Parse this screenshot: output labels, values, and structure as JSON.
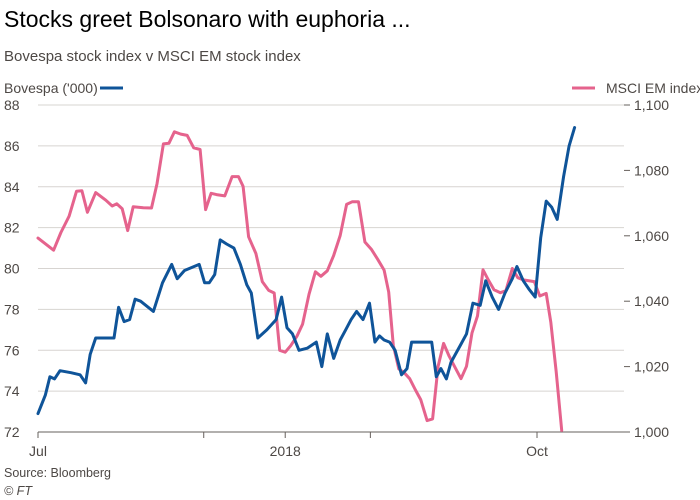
{
  "title": "Stocks greet Bolsonaro with euphoria ...",
  "subtitle": "Bovespa stock index v MSCI EM stock index",
  "source": "Source: Bloomberg",
  "credit": "© FT",
  "colors": {
    "bovespa": "#0f5499",
    "msci": "#e5638d",
    "grid": "#d7d4d1",
    "text": "#4d4845"
  },
  "chart_data": {
    "type": "line",
    "xlabel": "",
    "x_ticks": [
      "Jul",
      "",
      "2018",
      "",
      "Oct"
    ],
    "y_left": {
      "label": "Bovespa ('000)",
      "ylim": [
        72,
        88
      ],
      "ticks": [
        "72",
        "74",
        "76",
        "78",
        "80",
        "82",
        "84",
        "86",
        "88"
      ]
    },
    "y_right": {
      "label": "MSCI EM index",
      "ylim": [
        1000,
        1100
      ],
      "ticks": [
        "1,000",
        "1,020",
        "1,040",
        "1,060",
        "1,080",
        "1,100"
      ]
    },
    "series": [
      {
        "name": "Bovespa ('000)",
        "axis": "left",
        "points": [
          [
            0.0,
            72.9
          ],
          [
            0.8,
            73.8
          ],
          [
            1.3,
            74.7
          ],
          [
            1.8,
            74.6
          ],
          [
            2.4,
            75.0
          ],
          [
            3.6,
            74.9
          ],
          [
            4.6,
            74.8
          ],
          [
            5.2,
            74.4
          ],
          [
            5.7,
            75.8
          ],
          [
            6.3,
            76.6
          ],
          [
            7.6,
            76.6
          ],
          [
            8.3,
            76.6
          ],
          [
            8.8,
            78.1
          ],
          [
            9.4,
            77.4
          ],
          [
            10.0,
            77.5
          ],
          [
            10.6,
            78.5
          ],
          [
            11.2,
            78.4
          ],
          [
            12.6,
            77.9
          ],
          [
            13.6,
            79.3
          ],
          [
            14.6,
            80.2
          ],
          [
            15.2,
            79.5
          ],
          [
            16.0,
            79.9
          ],
          [
            17.6,
            80.2
          ],
          [
            18.2,
            79.3
          ],
          [
            18.7,
            79.3
          ],
          [
            19.3,
            79.7
          ],
          [
            19.9,
            81.4
          ],
          [
            20.6,
            81.2
          ],
          [
            21.4,
            81.0
          ],
          [
            22.1,
            80.2
          ],
          [
            22.8,
            79.2
          ],
          [
            23.3,
            78.8
          ],
          [
            24.0,
            76.6
          ],
          [
            25.0,
            77.0
          ],
          [
            26.0,
            77.5
          ],
          [
            26.6,
            78.6
          ],
          [
            27.2,
            77.1
          ],
          [
            27.8,
            76.8
          ],
          [
            28.5,
            76.0
          ],
          [
            29.4,
            76.1
          ],
          [
            30.4,
            76.4
          ],
          [
            31.0,
            75.2
          ],
          [
            31.6,
            76.8
          ],
          [
            32.3,
            75.6
          ],
          [
            33.0,
            76.5
          ],
          [
            33.6,
            77.0
          ],
          [
            34.2,
            77.5
          ],
          [
            34.8,
            77.9
          ],
          [
            35.5,
            77.5
          ],
          [
            36.2,
            78.3
          ],
          [
            36.8,
            76.4
          ],
          [
            37.3,
            76.7
          ],
          [
            37.8,
            76.5
          ],
          [
            38.4,
            76.4
          ],
          [
            39.0,
            76.0
          ],
          [
            39.7,
            74.8
          ],
          [
            40.3,
            75.1
          ],
          [
            40.8,
            76.4
          ],
          [
            42.0,
            76.4
          ],
          [
            43.0,
            76.4
          ],
          [
            43.5,
            74.7
          ],
          [
            44.0,
            75.1
          ],
          [
            44.6,
            74.6
          ],
          [
            45.1,
            75.4
          ],
          [
            46.2,
            76.3
          ],
          [
            46.8,
            76.8
          ],
          [
            47.5,
            78.3
          ],
          [
            48.3,
            78.2
          ],
          [
            48.9,
            79.4
          ],
          [
            49.6,
            78.6
          ],
          [
            50.3,
            78.0
          ],
          [
            51.0,
            78.8
          ],
          [
            51.8,
            79.5
          ],
          [
            52.3,
            80.1
          ],
          [
            53.0,
            79.4
          ],
          [
            53.6,
            79.0
          ],
          [
            54.3,
            78.6
          ],
          [
            54.9,
            81.5
          ],
          [
            55.5,
            83.3
          ],
          [
            56.1,
            83.0
          ],
          [
            56.7,
            82.4
          ],
          [
            57.4,
            84.5
          ],
          [
            58.0,
            86.0
          ],
          [
            58.6,
            86.9
          ]
        ]
      },
      {
        "name": "MSCI EM index",
        "axis": "right",
        "points": [
          [
            0.0,
            1059.3
          ],
          [
            1.7,
            1055.6
          ],
          [
            2.5,
            1061.0
          ],
          [
            3.4,
            1066.0
          ],
          [
            4.2,
            1073.6
          ],
          [
            4.8,
            1073.8
          ],
          [
            5.4,
            1067.2
          ],
          [
            6.3,
            1073.2
          ],
          [
            7.4,
            1070.9
          ],
          [
            8.1,
            1069.1
          ],
          [
            8.6,
            1069.8
          ],
          [
            9.2,
            1068.3
          ],
          [
            9.8,
            1061.6
          ],
          [
            10.4,
            1068.9
          ],
          [
            11.5,
            1068.6
          ],
          [
            12.4,
            1068.5
          ],
          [
            13.0,
            1075.9
          ],
          [
            13.7,
            1088.1
          ],
          [
            14.3,
            1088.3
          ],
          [
            14.9,
            1091.8
          ],
          [
            15.6,
            1091.1
          ],
          [
            16.3,
            1090.7
          ],
          [
            17.0,
            1086.9
          ],
          [
            17.7,
            1086.4
          ],
          [
            18.3,
            1068.0
          ],
          [
            18.9,
            1073.0
          ],
          [
            19.5,
            1072.6
          ],
          [
            20.4,
            1072.2
          ],
          [
            21.2,
            1078.1
          ],
          [
            21.9,
            1078.1
          ],
          [
            22.4,
            1075.1
          ],
          [
            23.0,
            1059.7
          ],
          [
            23.8,
            1054.6
          ],
          [
            24.5,
            1046.0
          ],
          [
            25.2,
            1043.3
          ],
          [
            25.8,
            1042.5
          ],
          [
            26.4,
            1025.0
          ],
          [
            27.0,
            1024.4
          ],
          [
            27.6,
            1026.4
          ],
          [
            28.3,
            1029.4
          ],
          [
            28.9,
            1033.0
          ],
          [
            29.6,
            1042.1
          ],
          [
            30.3,
            1049.0
          ],
          [
            30.9,
            1047.6
          ],
          [
            31.6,
            1049.3
          ],
          [
            32.3,
            1054.0
          ],
          [
            33.0,
            1060.1
          ],
          [
            33.7,
            1069.6
          ],
          [
            34.3,
            1070.4
          ],
          [
            35.0,
            1070.4
          ],
          [
            35.7,
            1058.1
          ],
          [
            36.4,
            1055.9
          ],
          [
            37.1,
            1052.8
          ],
          [
            37.8,
            1049.5
          ],
          [
            38.3,
            1042.8
          ],
          [
            38.8,
            1026.5
          ],
          [
            39.4,
            1019.3
          ],
          [
            40.0,
            1018.1
          ],
          [
            40.6,
            1016.3
          ],
          [
            41.2,
            1013.0
          ],
          [
            41.8,
            1009.9
          ],
          [
            42.5,
            1003.5
          ],
          [
            43.1,
            1004.0
          ],
          [
            43.7,
            1020.1
          ],
          [
            44.3,
            1027.1
          ],
          [
            44.9,
            1023.2
          ],
          [
            45.5,
            1020.0
          ],
          [
            46.2,
            1016.3
          ],
          [
            46.8,
            1020.1
          ],
          [
            47.4,
            1030.3
          ],
          [
            48.0,
            1035.5
          ],
          [
            48.6,
            1049.6
          ],
          [
            49.2,
            1046.4
          ],
          [
            49.8,
            1043.5
          ],
          [
            50.5,
            1042.6
          ],
          [
            51.1,
            1043.2
          ],
          [
            51.8,
            1050.0
          ],
          [
            52.4,
            1047.2
          ],
          [
            53.0,
            1046.5
          ],
          [
            54.2,
            1046.0
          ],
          [
            54.8,
            1041.6
          ],
          [
            55.5,
            1042.4
          ],
          [
            56.0,
            1033.6
          ],
          [
            56.6,
            1018.4
          ],
          [
            57.2,
            1000.5
          ]
        ]
      }
    ],
    "x_range": [
      0,
      64
    ],
    "x_tick_positions": [
      0,
      18.1,
      27.0,
      36.3,
      54.5
    ],
    "grid": true,
    "legend_placement": "top"
  }
}
